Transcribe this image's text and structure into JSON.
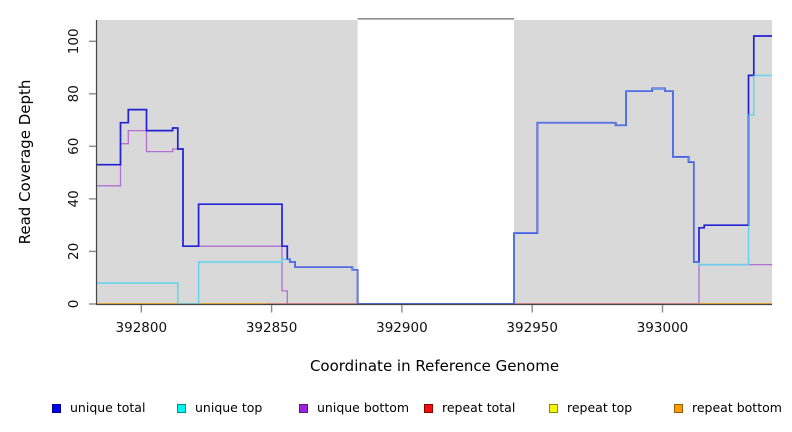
{
  "figure": {
    "x_axis_label": "Coordinate in Reference Genome",
    "y_axis_label": "Read Coverage Depth"
  },
  "chart_data": {
    "type": "line",
    "subtype": "step-after",
    "title": "",
    "xlabel": "Coordinate in Reference Genome",
    "ylabel": "Read Coverage Depth",
    "xlim": [
      392783,
      393042
    ],
    "ylim": [
      0,
      108
    ],
    "x_ticks": [
      392800,
      392850,
      392900,
      392950,
      393000
    ],
    "y_ticks": [
      0,
      20,
      40,
      60,
      80,
      100
    ],
    "grid": false,
    "legend_position": "bottom",
    "plot_background": "#d9d9d9",
    "uncovered_region": {
      "x_start": 392883,
      "x_end": 392943,
      "color": "#ffffff",
      "top_line_color": "#909090"
    },
    "series": [
      {
        "name": "unique total",
        "color": "#2121d6",
        "legend_fill": "#0000f5",
        "legend_border": "#00008b",
        "points": [
          [
            392783,
            53
          ],
          [
            392792,
            69
          ],
          [
            392795,
            74
          ],
          [
            392802,
            66
          ],
          [
            392812,
            67
          ],
          [
            392814,
            59
          ],
          [
            392816,
            22
          ],
          [
            392822,
            38
          ],
          [
            392854,
            22
          ],
          [
            392856,
            17
          ],
          [
            392857,
            16
          ],
          [
            392859,
            14
          ],
          [
            392881,
            13
          ],
          [
            392883,
            0
          ],
          [
            392943,
            27
          ],
          [
            392952,
            69
          ],
          [
            392982,
            68
          ],
          [
            392986,
            81
          ],
          [
            392996,
            82
          ],
          [
            393001,
            81
          ],
          [
            393004,
            56
          ],
          [
            393010,
            54
          ],
          [
            393012,
            16
          ],
          [
            393014,
            29
          ],
          [
            393016,
            30
          ],
          [
            393033,
            87
          ],
          [
            393035,
            102
          ],
          [
            393042,
            102
          ]
        ]
      },
      {
        "name": "unique top",
        "color": "#35e6e6",
        "legend_fill": "#00f5f5",
        "legend_border": "#008b8b",
        "points": [
          [
            392783,
            8
          ],
          [
            392814,
            0
          ],
          [
            392822,
            16
          ],
          [
            392854,
            17
          ],
          [
            392857,
            16
          ],
          [
            392859,
            14
          ],
          [
            392881,
            13
          ],
          [
            392883,
            0
          ],
          [
            392943,
            27
          ],
          [
            392952,
            69
          ],
          [
            392982,
            68
          ],
          [
            392986,
            81
          ],
          [
            392996,
            82
          ],
          [
            393001,
            81
          ],
          [
            393004,
            56
          ],
          [
            393010,
            54
          ],
          [
            393012,
            16
          ],
          [
            393014,
            15
          ],
          [
            393033,
            72
          ],
          [
            393035,
            87
          ],
          [
            393042,
            87
          ]
        ]
      },
      {
        "name": "unique bottom",
        "color": "#b36fd2",
        "legend_fill": "#a020e0",
        "legend_border": "#551a8b",
        "points": [
          [
            392783,
            45
          ],
          [
            392792,
            61
          ],
          [
            392795,
            66
          ],
          [
            392802,
            58
          ],
          [
            392812,
            59
          ],
          [
            392816,
            22
          ],
          [
            392854,
            5
          ],
          [
            392856,
            0
          ],
          [
            393014,
            15
          ],
          [
            393042,
            15
          ]
        ]
      },
      {
        "name": "repeat total",
        "color": "#e25c74",
        "legend_fill": "#f01010",
        "legend_border": "#8b0000",
        "points": [
          [
            392783,
            0
          ],
          [
            393042,
            0
          ]
        ]
      },
      {
        "name": "repeat top",
        "color": "#f5f50f",
        "legend_fill": "#f7f700",
        "legend_border": "#8b8b00",
        "points": [
          [
            392783,
            0
          ],
          [
            393042,
            0
          ]
        ]
      },
      {
        "name": "repeat bottom",
        "color": "#ffa319",
        "legend_fill": "#ff9d00",
        "legend_border": "#995c00",
        "points": [
          [
            392783,
            0
          ],
          [
            393042,
            0
          ]
        ]
      }
    ],
    "render_hints": {
      "draw_order": [
        "repeat top",
        "unique bottom",
        "repeat total",
        "repeat bottom",
        "unique top",
        "unique total"
      ],
      "repeat_bottom_visible_segments": [
        [
          392783,
          392848
        ],
        [
          393013,
          393042
        ]
      ],
      "overlap_highlight_color": "rgba(130,195,250,0.75)"
    }
  },
  "legend": {
    "items": [
      {
        "label": "unique total"
      },
      {
        "label": "unique top"
      },
      {
        "label": "unique bottom"
      },
      {
        "label": "repeat total"
      },
      {
        "label": "repeat top"
      },
      {
        "label": "repeat bottom"
      }
    ]
  }
}
